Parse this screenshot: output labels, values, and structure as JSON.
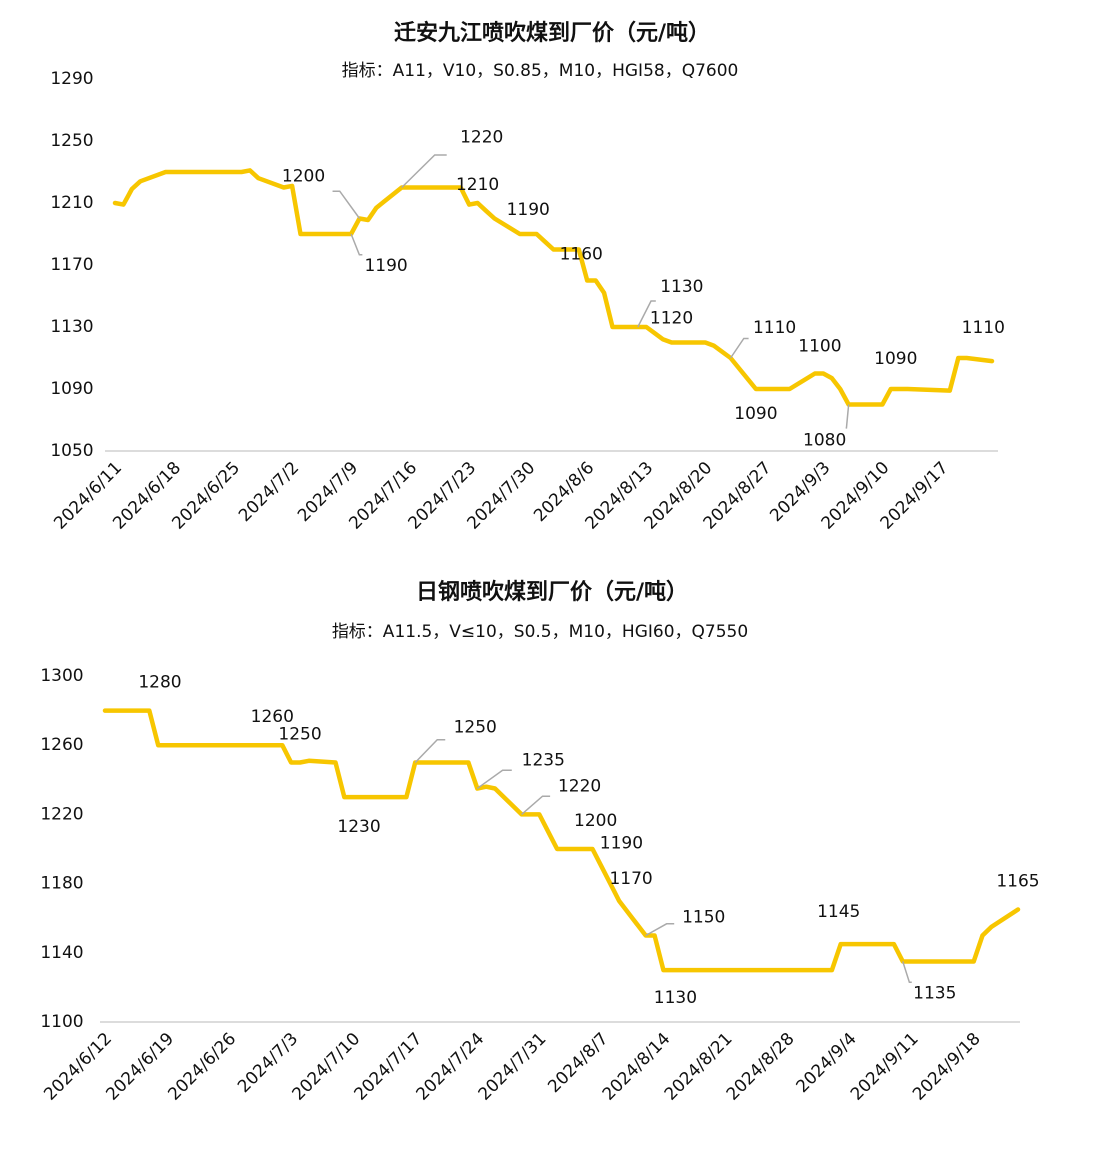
{
  "chart_data": [
    {
      "type": "line",
      "title": "迁安九江喷吹煤到厂价（元/吨）",
      "subtitle": "指标：A11，V10，S0.85，M10，HGI58，Q7600",
      "x": [
        "2024/6/11",
        "2024/6/12",
        "2024/6/13",
        "2024/6/14",
        "2024/6/17",
        "2024/6/18",
        "2024/6/19",
        "2024/6/20",
        "2024/6/21",
        "2024/6/24",
        "2024/6/25",
        "2024/6/26",
        "2024/6/27",
        "2024/6/28",
        "2024/7/1",
        "2024/7/2",
        "2024/7/3",
        "2024/7/4",
        "2024/7/5",
        "2024/7/8",
        "2024/7/9",
        "2024/7/10",
        "2024/7/11",
        "2024/7/12",
        "2024/7/15",
        "2024/7/16",
        "2024/7/17",
        "2024/7/18",
        "2024/7/19",
        "2024/7/22",
        "2024/7/23",
        "2024/7/24",
        "2024/7/25",
        "2024/7/26",
        "2024/7/29",
        "2024/7/30",
        "2024/7/31",
        "2024/8/1",
        "2024/8/2",
        "2024/8/5",
        "2024/8/6",
        "2024/8/7",
        "2024/8/8",
        "2024/8/9",
        "2024/8/12",
        "2024/8/13",
        "2024/8/14",
        "2024/8/15",
        "2024/8/16",
        "2024/8/19",
        "2024/8/20",
        "2024/8/21",
        "2024/8/22",
        "2024/8/23",
        "2024/8/26",
        "2024/8/27",
        "2024/8/28",
        "2024/8/29",
        "2024/8/30",
        "2024/9/2",
        "2024/9/3",
        "2024/9/4",
        "2024/9/5",
        "2024/9/6",
        "2024/9/9",
        "2024/9/10",
        "2024/9/11",
        "2024/9/12",
        "2024/9/13",
        "2024/9/18",
        "2024/9/19",
        "2024/9/20",
        "2024/9/23"
      ],
      "series": [
        {
          "name": "迁安九江",
          "color": "#f7c600",
          "values": [
            1210,
            1209,
            1219,
            1224,
            1230,
            1230,
            1230,
            1230,
            1230,
            1230,
            1230,
            1230,
            1231,
            1226,
            1220,
            1221,
            1190,
            1190,
            1190,
            1190,
            1190,
            1200,
            1199,
            1207,
            1220,
            1220,
            1220,
            1220,
            1220,
            1220,
            1209,
            1210,
            1205,
            1200,
            1190,
            1190,
            1190,
            1185,
            1180,
            1180,
            1160,
            1160,
            1152,
            1130,
            1130,
            1130,
            1126,
            1122,
            1120,
            1120,
            1120,
            1118,
            1114,
            1110,
            1090,
            1090,
            1090,
            1090,
            1090,
            1100,
            1100,
            1097,
            1090,
            1080,
            1080,
            1080,
            1090,
            1090,
            1090,
            1089,
            1110,
            1110,
            1108
          ]
        }
      ],
      "xlim": [
        "2024/6/11",
        "2024/9/23"
      ],
      "xticks": [
        "2024/6/11",
        "2024/6/18",
        "2024/6/25",
        "2024/7/2",
        "2024/7/9",
        "2024/7/16",
        "2024/7/23",
        "2024/7/30",
        "2024/8/6",
        "2024/8/13",
        "2024/8/20",
        "2024/8/27",
        "2024/9/3",
        "2024/9/10",
        "2024/9/17"
      ],
      "ylim": [
        1050,
        1290
      ],
      "yticks": [
        1050,
        1090,
        1130,
        1170,
        1210,
        1250,
        1290
      ],
      "grid": false
    },
    {
      "type": "line",
      "title": "日钢喷吹煤到厂价（元/吨）",
      "subtitle": "指标：A11.5，V≤10，S0.5，M10，HGI60，Q7550",
      "x": [
        "2024/6/12",
        "2024/6/13",
        "2024/6/14",
        "2024/6/17",
        "2024/6/18",
        "2024/6/19",
        "2024/6/20",
        "2024/6/21",
        "2024/6/24",
        "2024/6/25",
        "2024/6/26",
        "2024/6/27",
        "2024/6/28",
        "2024/7/1",
        "2024/7/2",
        "2024/7/3",
        "2024/7/4",
        "2024/7/5",
        "2024/7/8",
        "2024/7/9",
        "2024/7/10",
        "2024/7/11",
        "2024/7/12",
        "2024/7/15",
        "2024/7/16",
        "2024/7/17",
        "2024/7/18",
        "2024/7/19",
        "2024/7/22",
        "2024/7/23",
        "2024/7/24",
        "2024/7/25",
        "2024/7/26",
        "2024/7/29",
        "2024/7/30",
        "2024/7/31",
        "2024/8/1",
        "2024/8/2",
        "2024/8/5",
        "2024/8/6",
        "2024/8/7",
        "2024/8/8",
        "2024/8/9",
        "2024/8/12",
        "2024/8/13",
        "2024/8/14",
        "2024/8/15",
        "2024/8/16",
        "2024/8/19",
        "2024/8/20",
        "2024/8/21",
        "2024/8/22",
        "2024/8/23",
        "2024/8/26",
        "2024/8/27",
        "2024/8/28",
        "2024/8/29",
        "2024/8/30",
        "2024/9/2",
        "2024/9/3",
        "2024/9/4",
        "2024/9/5",
        "2024/9/6",
        "2024/9/9",
        "2024/9/10",
        "2024/9/11",
        "2024/9/12",
        "2024/9/13",
        "2024/9/18",
        "2024/9/19",
        "2024/9/20",
        "2024/9/23"
      ],
      "series": [
        {
          "name": "日钢",
          "color": "#f7c600",
          "values": [
            1280,
            1280,
            1280,
            1280,
            1260,
            1260,
            1260,
            1260,
            1260,
            1260,
            1260,
            1260,
            1260,
            1260,
            1260,
            1250,
            1250,
            1251,
            1250,
            1230,
            1230,
            1230,
            1230,
            1230,
            1230,
            1250,
            1250,
            1250,
            1250,
            1250,
            1235,
            1236,
            1235,
            1220,
            1220,
            1220,
            1210,
            1200,
            1200,
            1200,
            1190,
            1180,
            1170,
            1150,
            1150,
            1130,
            1130,
            1130,
            1130,
            1130,
            1130,
            1130,
            1130,
            1130,
            1130,
            1130,
            1130,
            1130,
            1130,
            1145,
            1145,
            1145,
            1145,
            1145,
            1135,
            1135,
            1135,
            1135,
            1135,
            1150,
            1155,
            1165
          ]
        }
      ],
      "xlim": [
        "2024/6/12",
        "2024/9/23"
      ],
      "xticks": [
        "2024/6/12",
        "2024/6/19",
        "2024/6/26",
        "2024/7/3",
        "2024/7/10",
        "2024/7/17",
        "2024/7/24",
        "2024/7/31",
        "2024/8/7",
        "2024/8/14",
        "2024/8/21",
        "2024/8/28",
        "2024/9/4",
        "2024/9/11",
        "2024/9/18"
      ],
      "ylim": [
        1100,
        1300
      ],
      "yticks": [
        1100,
        1140,
        1180,
        1220,
        1260,
        1300
      ],
      "grid": false
    }
  ]
}
